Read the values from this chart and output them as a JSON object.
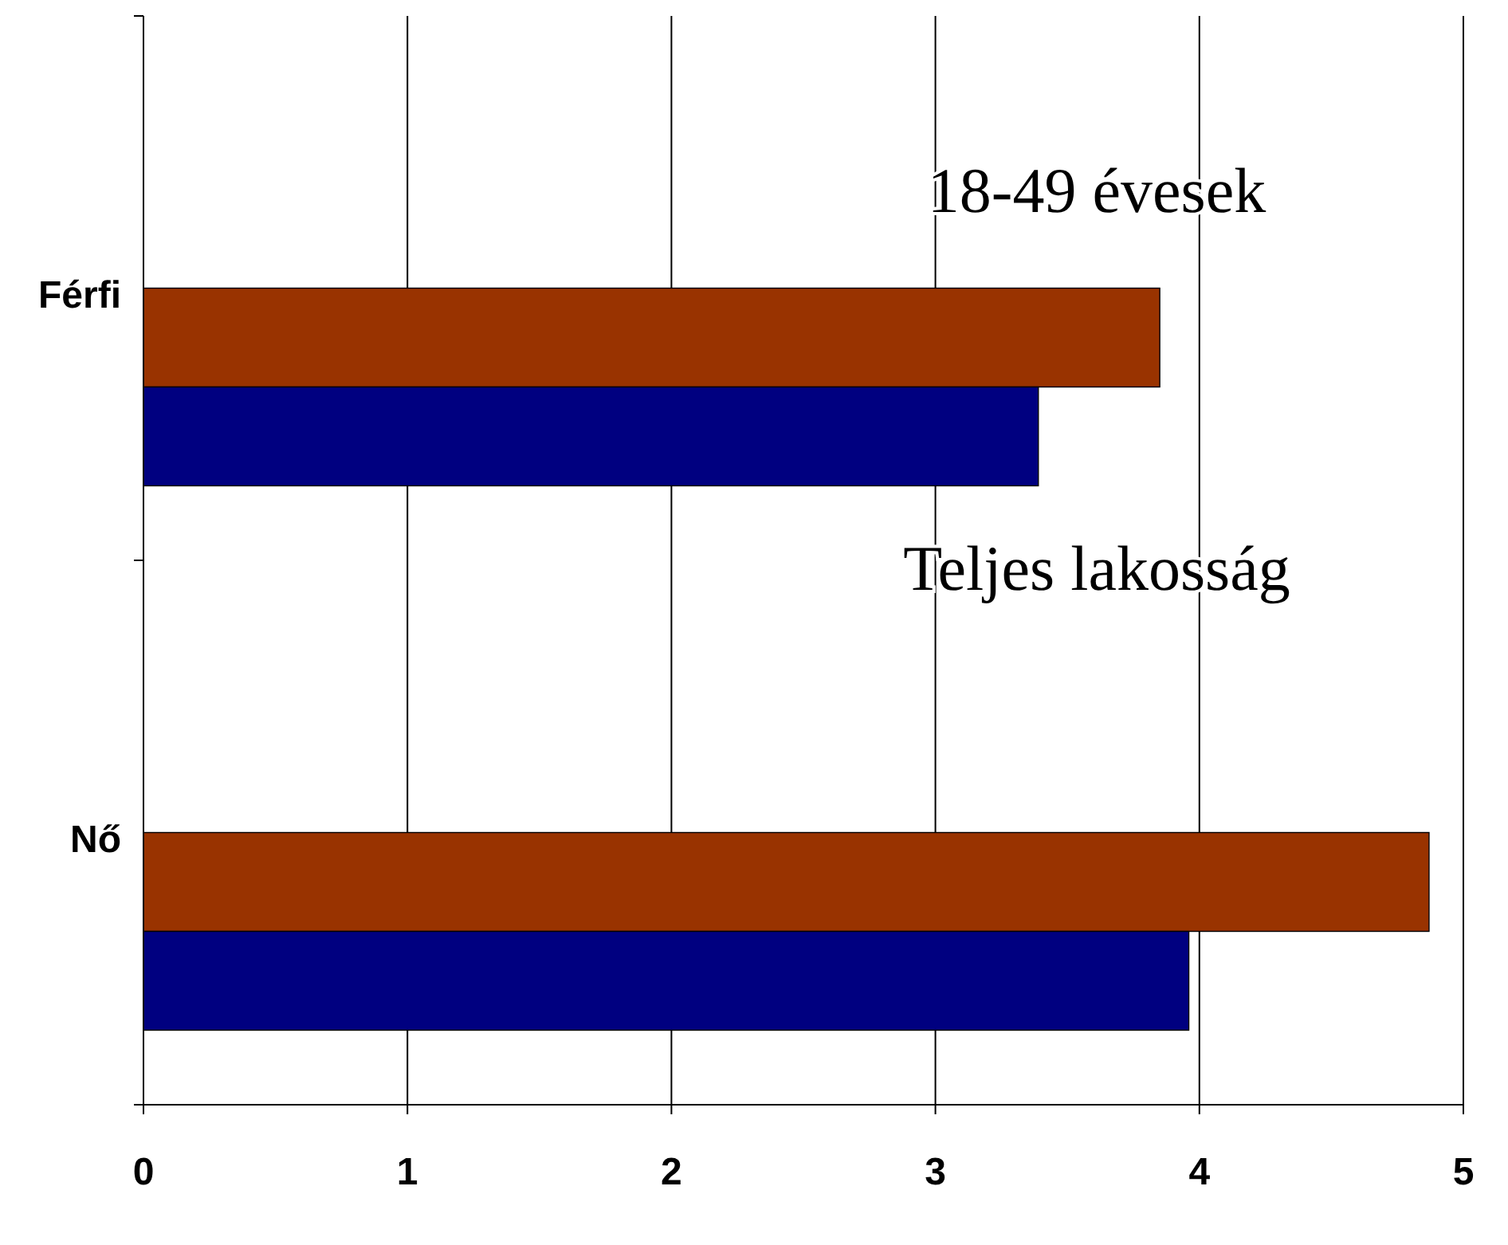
{
  "chart_data": {
    "type": "bar",
    "orientation": "horizontal",
    "categories": [
      "Férfi",
      "Nő"
    ],
    "series": [
      {
        "name": "18-49 évesek",
        "color": "#993300",
        "values": [
          3.85,
          4.87
        ]
      },
      {
        "name": "Teljes lakosság",
        "color": "#000080",
        "values": [
          3.39,
          3.96
        ]
      }
    ],
    "xlim": [
      0,
      5
    ],
    "xticks": [
      0,
      1,
      2,
      3,
      4,
      5
    ],
    "grid": "x"
  }
}
